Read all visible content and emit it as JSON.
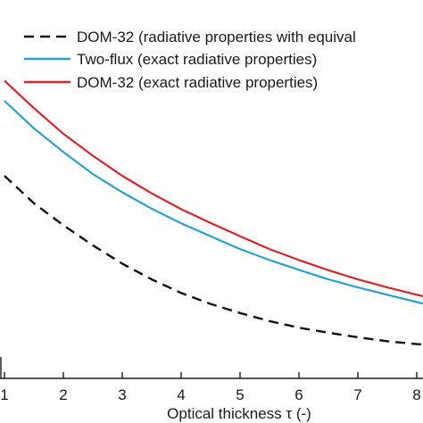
{
  "chart_data": {
    "type": "line",
    "xlabel": "Optical thickness τ (-)",
    "x_ticks": [
      "1",
      "2",
      "3",
      "4",
      "5",
      "6",
      "7",
      "8"
    ],
    "xlim": [
      0.95,
      8.4
    ],
    "legend_placement": "top-right",
    "series": [
      {
        "name": "DOM-32 (radiative properties with equival",
        "color": "#111111",
        "style": "dashed",
        "x": [
          1,
          1.5,
          2,
          2.5,
          3,
          3.5,
          4,
          4.5,
          5,
          5.5,
          6,
          6.5,
          7,
          7.5,
          8,
          8.4
        ],
        "y": [
          0.545,
          0.47,
          0.41,
          0.355,
          0.305,
          0.262,
          0.225,
          0.195,
          0.17,
          0.148,
          0.13,
          0.116,
          0.104,
          0.093,
          0.085,
          0.083
        ]
      },
      {
        "name": "Two-flux (exact radiative properties)",
        "color": "#2b9fd3",
        "style": "solid",
        "x": [
          1,
          1.5,
          2,
          2.5,
          3,
          3.5,
          4,
          4.5,
          5,
          5.5,
          6,
          6.5,
          7,
          7.5,
          8,
          8.4
        ],
        "y": [
          0.75,
          0.675,
          0.61,
          0.55,
          0.5,
          0.455,
          0.415,
          0.38,
          0.345,
          0.315,
          0.288,
          0.262,
          0.24,
          0.22,
          0.2,
          0.185
        ]
      },
      {
        "name": "DOM-32 (exact radiative properties)",
        "color": "#d7262b",
        "style": "solid",
        "x": [
          1,
          1.5,
          2,
          2.5,
          3,
          3.5,
          4,
          4.5,
          5,
          5.5,
          6,
          6.5,
          7,
          7.5,
          8,
          8.4
        ],
        "y": [
          0.805,
          0.73,
          0.66,
          0.6,
          0.545,
          0.497,
          0.454,
          0.416,
          0.38,
          0.345,
          0.315,
          0.287,
          0.262,
          0.24,
          0.22,
          0.205
        ]
      }
    ]
  }
}
